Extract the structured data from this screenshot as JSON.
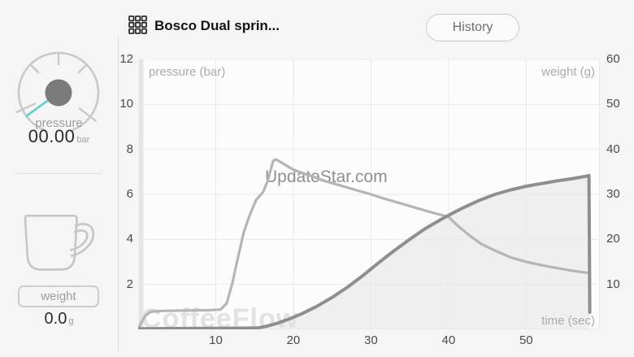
{
  "header": {
    "title": "Bosco Dual sprin...",
    "history_button": "History"
  },
  "sidebar": {
    "pressure": {
      "label": "pressure",
      "value": "00.00",
      "unit": "bar"
    },
    "weight": {
      "label": "weight",
      "value": "0.0",
      "unit": "g"
    }
  },
  "watermarks": {
    "center": "UpdateStar.com",
    "bottom_left": "CoffeeFlow"
  },
  "colors": {
    "accent_needle": "#5ed1cd",
    "pressure_line": "#b5b5b5",
    "weight_line": "#8e8e8e",
    "weight_fill": "#efefef",
    "grid": "#e9e9e9"
  },
  "chart_data": {
    "type": "line",
    "x_label": "time (sec)",
    "left_axis_label": "pressure (bar)",
    "right_axis_label": "weight (g)",
    "x_range": [
      0,
      59.5
    ],
    "left_range": [
      0,
      12
    ],
    "right_range": [
      0,
      60
    ],
    "x_ticks": [
      10,
      20,
      30,
      40,
      50
    ],
    "left_ticks": [
      2,
      4,
      6,
      8,
      10,
      12
    ],
    "right_ticks": [
      10,
      20,
      30,
      40,
      50,
      60
    ],
    "grid": true,
    "legend": "none",
    "series": [
      {
        "name": "pressure (bar)",
        "axis": "left",
        "color": "#b5b5b5",
        "width": 3.2,
        "points": [
          [
            0,
            0
          ],
          [
            0.4,
            0.3
          ],
          [
            0.9,
            0.6
          ],
          [
            1.6,
            0.78
          ],
          [
            3,
            0.82
          ],
          [
            6,
            0.84
          ],
          [
            9,
            0.85
          ],
          [
            10.6,
            0.88
          ],
          [
            11.4,
            1.15
          ],
          [
            12.1,
            2.0
          ],
          [
            12.8,
            3.1
          ],
          [
            13.6,
            4.3
          ],
          [
            14.4,
            5.1
          ],
          [
            15.2,
            5.75
          ],
          [
            16.1,
            6.1
          ],
          [
            16.7,
            6.6
          ],
          [
            17.4,
            7.5
          ],
          [
            17.8,
            7.55
          ],
          [
            18.6,
            7.38
          ],
          [
            20,
            7.1
          ],
          [
            22,
            6.85
          ],
          [
            24,
            6.6
          ],
          [
            26,
            6.4
          ],
          [
            28,
            6.2
          ],
          [
            30,
            6.0
          ],
          [
            32,
            5.78
          ],
          [
            34,
            5.58
          ],
          [
            36,
            5.38
          ],
          [
            38,
            5.18
          ],
          [
            40,
            5.0
          ],
          [
            41.2,
            4.6
          ],
          [
            42.6,
            4.2
          ],
          [
            44.2,
            3.8
          ],
          [
            46,
            3.5
          ],
          [
            48,
            3.2
          ],
          [
            50,
            3.0
          ],
          [
            52,
            2.85
          ],
          [
            54,
            2.72
          ],
          [
            56,
            2.6
          ],
          [
            57.8,
            2.52
          ]
        ]
      },
      {
        "name": "weight (g)",
        "axis": "right",
        "color": "#8e8e8e",
        "width": 4,
        "fill": "#efefef",
        "points": [
          [
            0,
            0.15
          ],
          [
            6,
            0.2
          ],
          [
            12,
            0.25
          ],
          [
            15.4,
            0.3
          ],
          [
            16.6,
            0.7
          ],
          [
            18,
            1.4
          ],
          [
            19.6,
            2.4
          ],
          [
            21,
            3.4
          ],
          [
            23,
            5.1
          ],
          [
            25,
            7.1
          ],
          [
            27,
            9.4
          ],
          [
            29,
            12
          ],
          [
            31,
            14.8
          ],
          [
            33,
            17.5
          ],
          [
            35,
            20
          ],
          [
            37,
            22.4
          ],
          [
            39,
            24.4
          ],
          [
            40.5,
            25.8
          ],
          [
            42,
            27.1
          ],
          [
            44,
            28.7
          ],
          [
            46,
            30
          ],
          [
            48,
            31
          ],
          [
            50,
            31.8
          ],
          [
            52,
            32.4
          ],
          [
            54,
            33
          ],
          [
            56,
            33.5
          ],
          [
            57.6,
            34
          ],
          [
            58.1,
            34.2
          ],
          [
            58.2,
            3.8
          ]
        ]
      }
    ]
  }
}
